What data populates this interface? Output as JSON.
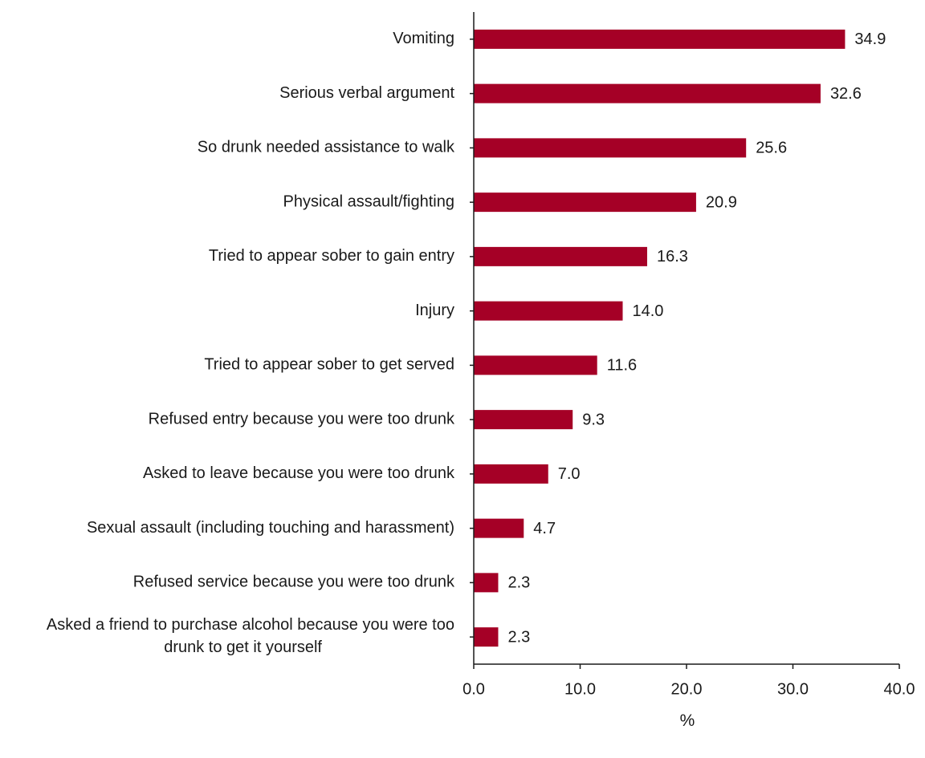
{
  "chart_data": {
    "type": "bar",
    "orientation": "horizontal",
    "categories": [
      "Vomiting",
      "Serious verbal argument",
      "So drunk needed assistance to walk",
      "Physical assault/fighting",
      "Tried to appear sober to gain entry",
      "Injury",
      "Tried to appear sober to get served",
      "Refused entry because you were too drunk",
      "Asked to leave because you were too drunk",
      "Sexual assault (including touching and harassment)",
      "Refused service because you were too drunk",
      "Asked a friend to purchase alcohol because you were too drunk to get it yourself"
    ],
    "values": [
      34.9,
      32.6,
      25.6,
      20.9,
      16.3,
      14.0,
      11.6,
      9.3,
      7.0,
      4.7,
      2.3,
      2.3
    ],
    "value_labels": [
      "34.9",
      "32.6",
      "25.6",
      "20.9",
      "16.3",
      "14.0",
      "11.6",
      "9.3",
      "7.0",
      "4.7",
      "2.3",
      "2.3"
    ],
    "title": "",
    "xlabel": "%",
    "ylabel": "",
    "xlim": [
      0,
      40
    ],
    "x_ticks": [
      0,
      10,
      20,
      30,
      40
    ],
    "x_tick_labels": [
      "0.0",
      "10.0",
      "20.0",
      "30.0",
      "40.0"
    ],
    "grid": false,
    "legend": "none",
    "bar_color": "#A50026"
  }
}
